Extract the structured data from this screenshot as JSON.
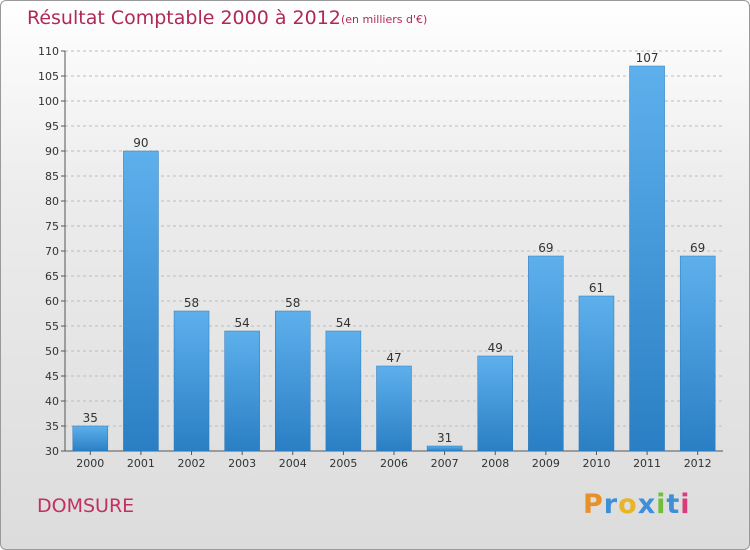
{
  "title": "Résultat Comptable 2000 à 2012",
  "subtitle": "(en milliers d'€)",
  "commune": "DOMSURE",
  "logo": {
    "letters": [
      "P",
      "r",
      "o",
      "x",
      "i",
      "t",
      "i"
    ],
    "colors": [
      "#e8912a",
      "#3c8fd8",
      "#e8b52a",
      "#3c8fd8",
      "#6fbf3a",
      "#3c8fd8",
      "#d83c7a"
    ]
  },
  "colors": {
    "title": "#b0285a",
    "bar_top": "#5eb0ec",
    "bar_bottom": "#2a7fc4",
    "grid": "#bcbcbc"
  },
  "chart_data": {
    "type": "bar",
    "title": "Résultat Comptable 2000 à 2012",
    "xlabel": "",
    "ylabel": "",
    "categories": [
      "2000",
      "2001",
      "2002",
      "2003",
      "2004",
      "2005",
      "2006",
      "2007",
      "2008",
      "2009",
      "2010",
      "2011",
      "2012"
    ],
    "values": [
      35,
      90,
      58,
      54,
      58,
      54,
      47,
      31,
      49,
      69,
      61,
      107,
      69
    ],
    "ylim": [
      30,
      110
    ],
    "yticks": [
      30,
      35,
      40,
      45,
      50,
      55,
      60,
      65,
      70,
      75,
      80,
      85,
      90,
      95,
      100,
      105,
      110
    ],
    "grid": true,
    "data_labels": true
  }
}
